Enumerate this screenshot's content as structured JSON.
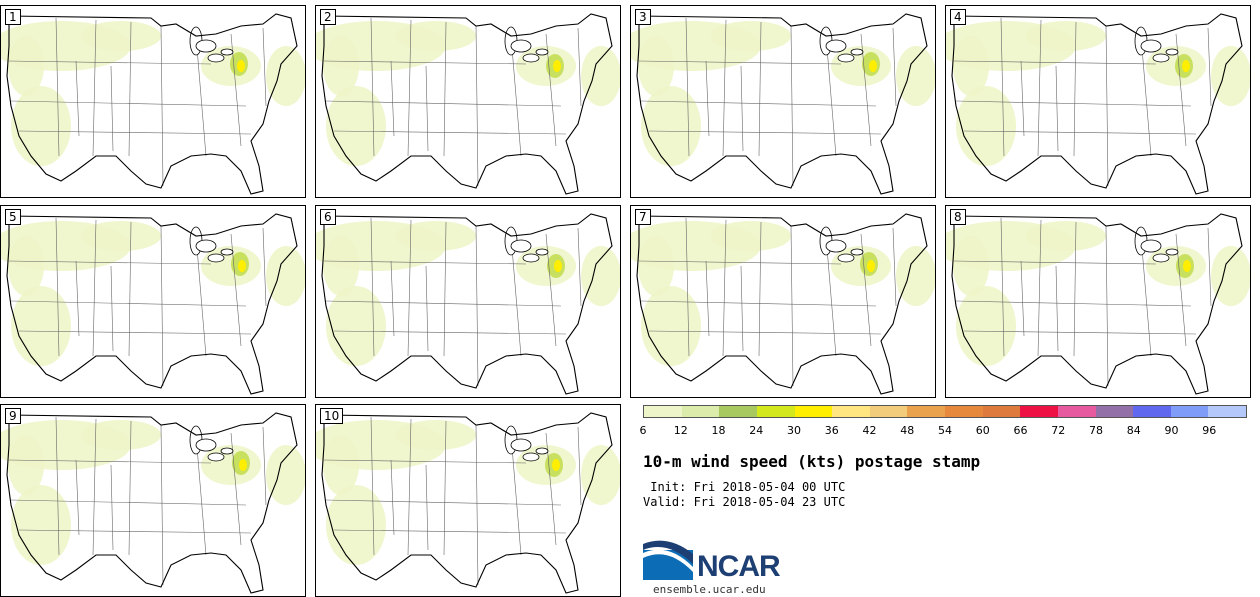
{
  "panels": [
    {
      "label": "1"
    },
    {
      "label": "2"
    },
    {
      "label": "3"
    },
    {
      "label": "4"
    },
    {
      "label": "5"
    },
    {
      "label": "6"
    },
    {
      "label": "7"
    },
    {
      "label": "8"
    },
    {
      "label": "9"
    },
    {
      "label": "10"
    }
  ],
  "colorbar": {
    "colors": [
      "#eef5c8",
      "#dcecaa",
      "#a7c95f",
      "#d4e81e",
      "#ffee00",
      "#ffe680",
      "#f2cc7a",
      "#eba24c",
      "#e6893c",
      "#dd7a3c",
      "#ee1144",
      "#e85aa0",
      "#9370a8",
      "#6068f0",
      "#7f9cf8",
      "#b4c8fa"
    ],
    "tick_labels": [
      "6",
      "12",
      "18",
      "24",
      "30",
      "36",
      "42",
      "48",
      "54",
      "60",
      "66",
      "72",
      "78",
      "84",
      "90",
      "96"
    ]
  },
  "title": "10-m wind speed (kts) postage stamp",
  "init": " Init: Fri 2018-05-04 00 UTC",
  "valid": "Valid: Fri 2018-05-04 23 UTC",
  "logo": {
    "text": "NCAR",
    "icon": "ncar-logo-icon"
  },
  "url": "ensemble.ucar.edu"
}
